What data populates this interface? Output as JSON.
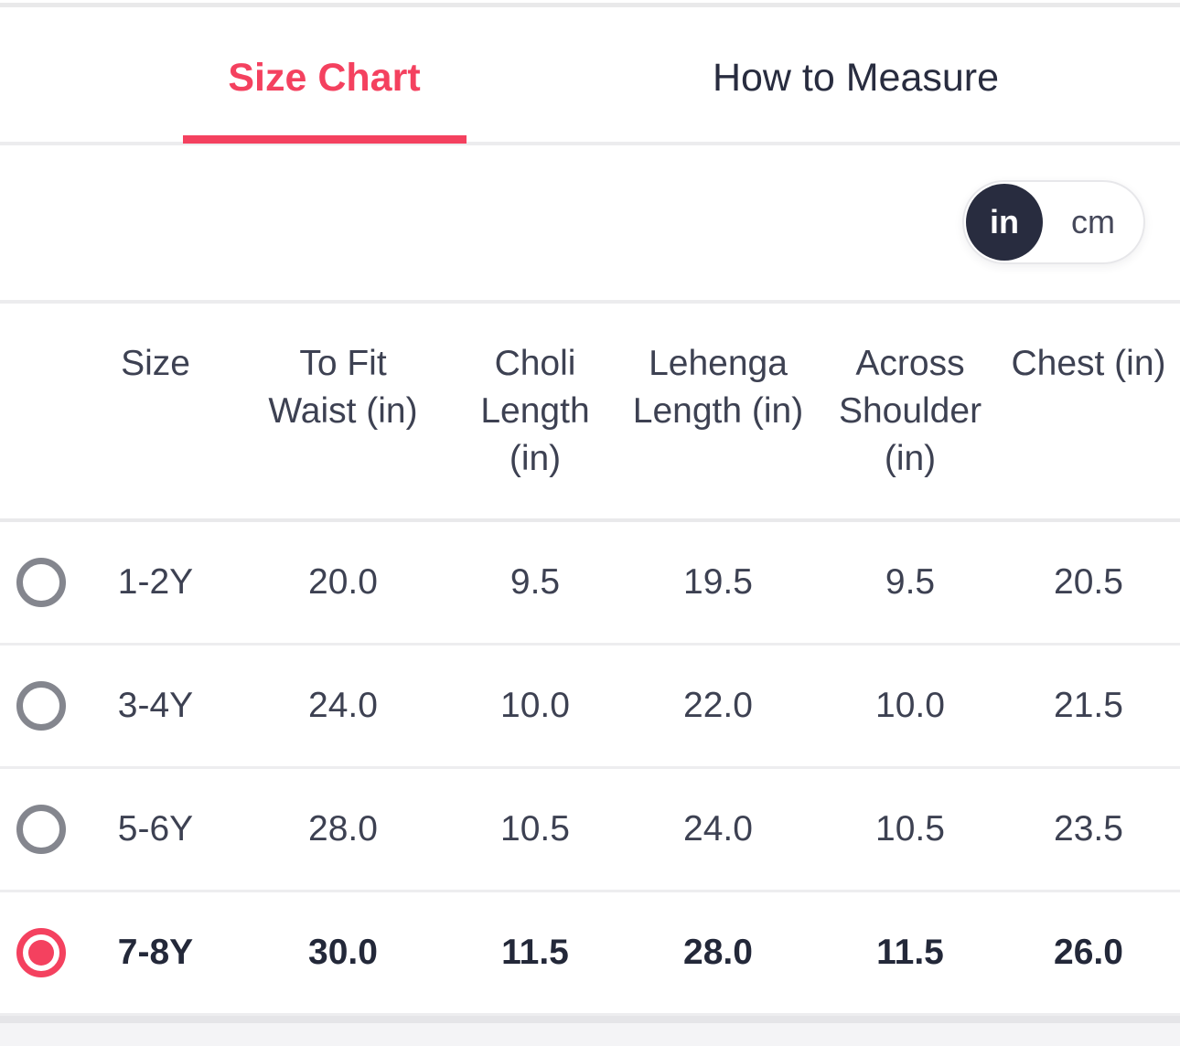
{
  "colors": {
    "accent": "#f4415f",
    "navy": "#282c3f",
    "text": "#3d4152",
    "text_strong": "#232839",
    "radio_gray": "#84868e"
  },
  "tabs": [
    {
      "label": "Size Chart",
      "active": true
    },
    {
      "label": "How to Measure",
      "active": false
    }
  ],
  "unit_toggle": {
    "selected": "in",
    "in_label": "in",
    "cm_label": "cm"
  },
  "table": {
    "columns": [
      {
        "label": "Size",
        "lines": [
          "Size"
        ]
      },
      {
        "label": "To Fit Waist (in)",
        "lines": [
          "To Fit",
          "Waist (in)"
        ]
      },
      {
        "label": "Choli Length (in)",
        "lines": [
          "Choli",
          "Length (in)"
        ]
      },
      {
        "label": "Lehenga Length (in)",
        "lines": [
          "Lehenga",
          "Length (in)"
        ]
      },
      {
        "label": "Across Shoulder (in)",
        "lines": [
          "Across",
          "Shoulder",
          "(in)"
        ]
      },
      {
        "label": "Chest (in)",
        "lines": [
          "Chest (in)"
        ]
      }
    ],
    "rows": [
      {
        "selected": false,
        "size": "1-2Y",
        "to_fit_waist": "20.0",
        "choli_length": "9.5",
        "lehenga_length": "19.5",
        "across_shoulder": "9.5",
        "chest": "20.5"
      },
      {
        "selected": false,
        "size": "3-4Y",
        "to_fit_waist": "24.0",
        "choli_length": "10.0",
        "lehenga_length": "22.0",
        "across_shoulder": "10.0",
        "chest": "21.5"
      },
      {
        "selected": false,
        "size": "5-6Y",
        "to_fit_waist": "28.0",
        "choli_length": "10.5",
        "lehenga_length": "24.0",
        "across_shoulder": "10.5",
        "chest": "23.5"
      },
      {
        "selected": true,
        "size": "7-8Y",
        "to_fit_waist": "30.0",
        "choli_length": "11.5",
        "lehenga_length": "28.0",
        "across_shoulder": "11.5",
        "chest": "26.0"
      }
    ]
  }
}
